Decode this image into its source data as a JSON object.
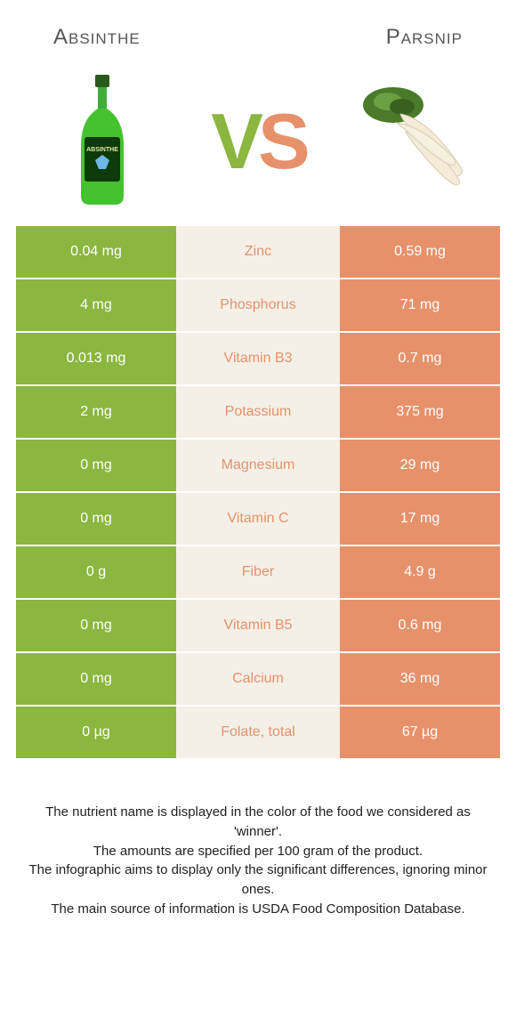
{
  "colors": {
    "left_bg": "#8bb63f",
    "right_bg": "#e7916a",
    "mid_bg": "#f5f0e7",
    "left_text": "#ffffff",
    "right_text": "#ffffff",
    "mid_winner_left": "#8bb63f",
    "mid_winner_right": "#e7916a"
  },
  "title_left": "Absinthe",
  "title_right": "Parsnip",
  "vs_v": "V",
  "vs_s": "S",
  "rows": [
    {
      "left": "0.04 mg",
      "label": "Zinc",
      "right": "0.59 mg",
      "winner": "right"
    },
    {
      "left": "4 mg",
      "label": "Phosphorus",
      "right": "71 mg",
      "winner": "right"
    },
    {
      "left": "0.013 mg",
      "label": "Vitamin B3",
      "right": "0.7 mg",
      "winner": "right"
    },
    {
      "left": "2 mg",
      "label": "Potassium",
      "right": "375 mg",
      "winner": "right"
    },
    {
      "left": "0 mg",
      "label": "Magnesium",
      "right": "29 mg",
      "winner": "right"
    },
    {
      "left": "0 mg",
      "label": "Vitamin C",
      "right": "17 mg",
      "winner": "right"
    },
    {
      "left": "0 g",
      "label": "Fiber",
      "right": "4.9 g",
      "winner": "right"
    },
    {
      "left": "0 mg",
      "label": "Vitamin B5",
      "right": "0.6 mg",
      "winner": "right"
    },
    {
      "left": "0 mg",
      "label": "Calcium",
      "right": "36 mg",
      "winner": "right"
    },
    {
      "left": "0 µg",
      "label": "Folate, total",
      "right": "67 µg",
      "winner": "right"
    }
  ],
  "footer": {
    "l1": "The nutrient name is displayed in the color of the food we considered as 'winner'.",
    "l2": "The amounts are specified per 100 gram of the product.",
    "l3": "The infographic aims to display only the significant differences, ignoring minor ones.",
    "l4": "The main source of information is USDA Food Composition Database."
  }
}
